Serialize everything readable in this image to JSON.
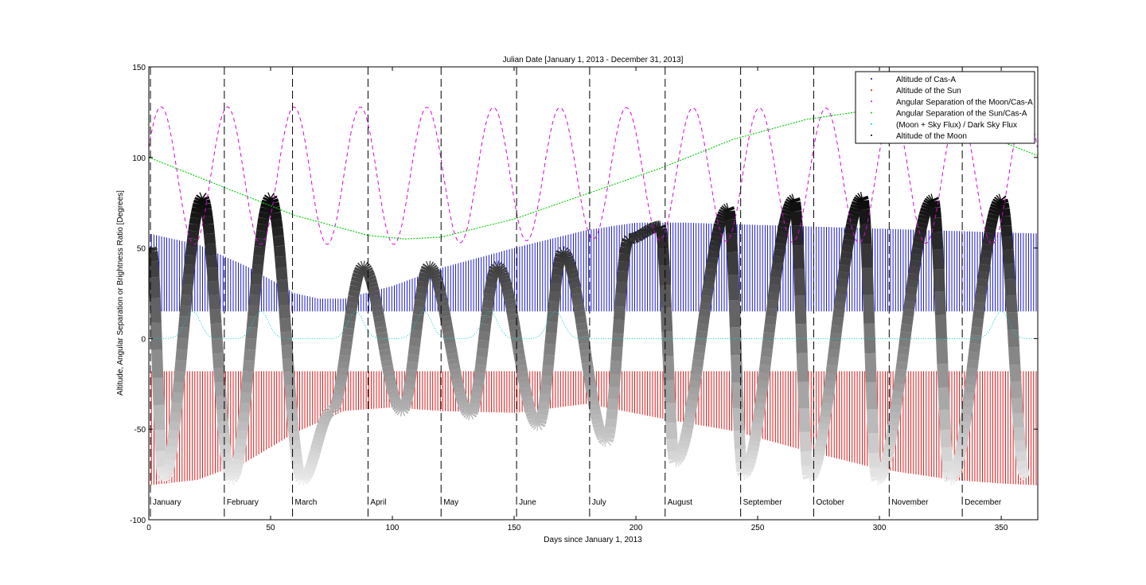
{
  "chart_data": {
    "type": "line",
    "title": "Julian Date [January 1, 2013 - December 31, 2013]",
    "xlabel": "Days since January 1, 2013",
    "ylabel": "Altitude, Angular Separation or Brightness Ratio [Degrees]",
    "xlim": [
      0,
      365
    ],
    "ylim": [
      -100,
      150
    ],
    "x_ticks": [
      0,
      50,
      100,
      150,
      200,
      250,
      300,
      350
    ],
    "y_ticks": [
      -100,
      -50,
      0,
      50,
      100,
      150
    ],
    "grid": false,
    "legend_position": "top-right",
    "legend": [
      {
        "label": "Altitude of Cas-A",
        "color": "#0000cc"
      },
      {
        "label": "Altitude of the Sun",
        "color": "#dd0000"
      },
      {
        "label": "Angular Separation of the Moon/Cas-A",
        "color": "#dd00dd"
      },
      {
        "label": "Angular Separation of the Sun/Cas-A",
        "color": "#00cc00"
      },
      {
        "label": "(Moon + Sky Flux) / Dark Sky Flux",
        "color": "#00cccc"
      },
      {
        "label": "Altitude of the Moon",
        "color": "#000000"
      }
    ],
    "month_markers": [
      {
        "day": 0,
        "label": "January"
      },
      {
        "day": 31,
        "label": "February"
      },
      {
        "day": 59,
        "label": "March"
      },
      {
        "day": 90,
        "label": "April"
      },
      {
        "day": 120,
        "label": "May"
      },
      {
        "day": 151,
        "label": "June"
      },
      {
        "day": 181,
        "label": "July"
      },
      {
        "day": 212,
        "label": "August"
      },
      {
        "day": 243,
        "label": "September"
      },
      {
        "day": 273,
        "label": "October"
      },
      {
        "day": 304,
        "label": "November"
      },
      {
        "day": 334,
        "label": "December"
      }
    ],
    "series": [
      {
        "name": "Angular Separation of the Sun/Cas-A",
        "color": "#00cc00",
        "x": [
          0,
          30,
          60,
          90,
          105,
          120,
          150,
          180,
          210,
          240,
          270,
          290,
          310,
          340,
          365
        ],
        "y": [
          100,
          84,
          68,
          57,
          55,
          56,
          66,
          80,
          94,
          110,
          121,
          125,
          123,
          114,
          101
        ]
      },
      {
        "name": "Angular Separation of the Moon/Cas-A",
        "color": "#dd00dd",
        "period_days": 27.3,
        "peak_day": 5,
        "max": [
          [
            0,
            128
          ],
          [
            365,
            127
          ]
        ],
        "min": [
          [
            0,
            52
          ],
          [
            60,
            52
          ],
          [
            105,
            52
          ],
          [
            180,
            55
          ],
          [
            270,
            53
          ],
          [
            365,
            52
          ]
        ]
      },
      {
        "name": "Altitude of Cas-A",
        "color": "#0000cc",
        "upper": {
          "x": [
            0,
            20,
            40,
            60,
            70,
            80,
            100,
            120,
            150,
            180,
            200,
            220,
            365
          ],
          "y": [
            58,
            52,
            40,
            25,
            22,
            22,
            29,
            39,
            50,
            60,
            64,
            64,
            58
          ]
        },
        "lower": 15
      },
      {
        "name": "Altitude of the Sun",
        "color": "#dd0000",
        "upper": -18,
        "lower": {
          "x": [
            0,
            20,
            40,
            60,
            80,
            100,
            120,
            150,
            180,
            210,
            240,
            270,
            300,
            330,
            350,
            365
          ],
          "y": [
            -81,
            -78,
            -68,
            -52,
            -40,
            -38,
            -40,
            -41,
            -36,
            -44,
            -51,
            -62,
            -72,
            -78,
            -80,
            -81
          ]
        }
      },
      {
        "name": "(Moon + Sky Flux) / Dark Sky Flux",
        "color": "#00cccc",
        "baseline": 0,
        "bump_days": [
          18,
          46,
          85,
          113,
          140,
          167,
          350
        ],
        "bump_peak": 15
      },
      {
        "name": "Altitude of the Moon",
        "color": "#000000",
        "cycle_start_days": [
          0,
          12,
          40,
          66,
          93,
          122,
          150,
          178,
          206,
          234,
          263,
          293,
          320,
          348
        ],
        "peaks": [
          {
            "day": 1,
            "y": 50
          },
          {
            "day": 22,
            "y": 78
          },
          {
            "day": 50,
            "y": 78
          },
          {
            "day": 88,
            "y": 40
          },
          {
            "day": 115,
            "y": 40
          },
          {
            "day": 143,
            "y": 40
          },
          {
            "day": 170,
            "y": 48
          },
          {
            "day": 197,
            "y": 55
          },
          {
            "day": 210,
            "y": 62
          },
          {
            "day": 238,
            "y": 72
          },
          {
            "day": 265,
            "y": 77
          },
          {
            "day": 293,
            "y": 78
          },
          {
            "day": 322,
            "y": 77
          },
          {
            "day": 350,
            "y": 77
          }
        ],
        "troughs": [
          {
            "day": 6,
            "y": -78
          },
          {
            "day": 34,
            "y": -78
          },
          {
            "day": 63,
            "y": -78
          },
          {
            "day": 75,
            "y": -40
          },
          {
            "day": 104,
            "y": -40
          },
          {
            "day": 132,
            "y": -42
          },
          {
            "day": 160,
            "y": -48
          },
          {
            "day": 188,
            "y": -57
          },
          {
            "day": 216,
            "y": -68
          },
          {
            "day": 244,
            "y": -75
          },
          {
            "day": 271,
            "y": -77
          },
          {
            "day": 299,
            "y": -78
          },
          {
            "day": 329,
            "y": -78
          },
          {
            "day": 360,
            "y": -77
          }
        ]
      }
    ]
  }
}
